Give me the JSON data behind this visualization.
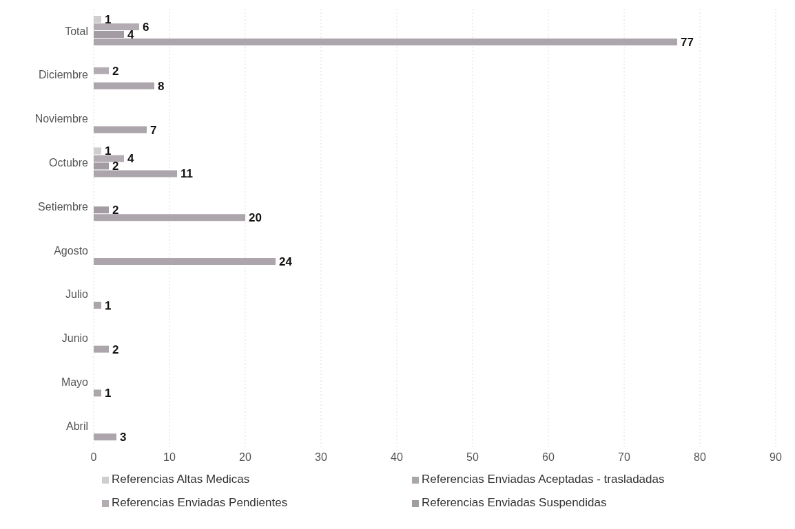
{
  "chart_data": {
    "type": "bar",
    "orientation": "horizontal",
    "categories": [
      "Total",
      "Diciembre",
      "Noviembre",
      "Octubre",
      "Setiembre",
      "Agosto",
      "Julio",
      "Junio",
      "Mayo",
      "Abril"
    ],
    "series": [
      {
        "name": "Referencias  Altas Medicas",
        "color": "#d0cdd0",
        "values": [
          1,
          null,
          null,
          1,
          null,
          null,
          null,
          null,
          null,
          null
        ]
      },
      {
        "name": "Referencias Enviadas Pendientes",
        "color": "#b3adb3",
        "values": [
          6,
          2,
          null,
          4,
          null,
          null,
          null,
          null,
          null,
          null
        ]
      },
      {
        "name": "Referencias Enviadas Suspendidas",
        "color": "#a39da3",
        "values": [
          4,
          null,
          null,
          2,
          2,
          null,
          null,
          null,
          null,
          null
        ]
      },
      {
        "name": "Referencias Enviadas Aceptadas - trasladadas",
        "color": "#aca6ac",
        "values": [
          77,
          8,
          7,
          11,
          20,
          24,
          1,
          2,
          1,
          3
        ]
      }
    ],
    "xlim": [
      0,
      90
    ],
    "xticks": [
      0,
      10,
      20,
      30,
      40,
      50,
      60,
      70,
      80,
      90
    ],
    "grid": "x",
    "legend": "bottom",
    "data_labels": true
  }
}
